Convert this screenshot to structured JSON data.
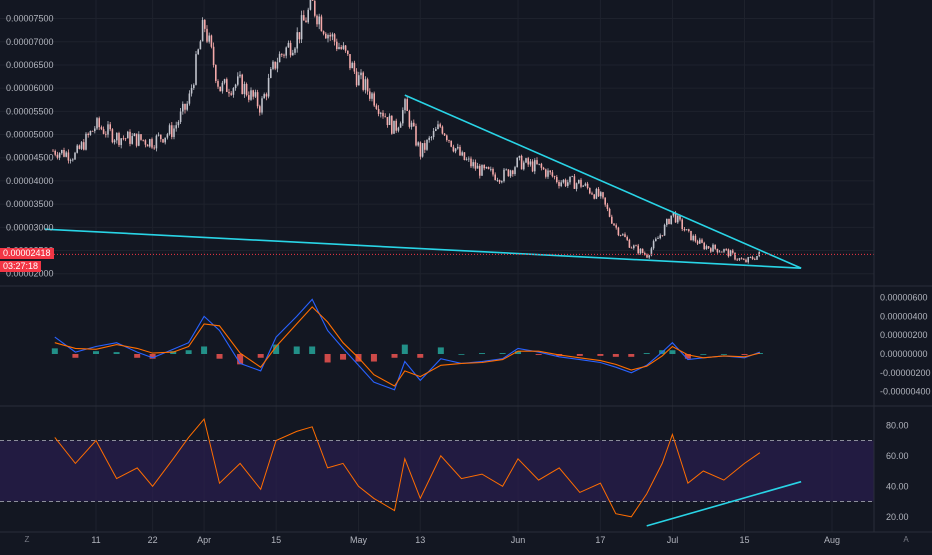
{
  "colors": {
    "background": "#131722",
    "grid": "#1e222d",
    "up_candle": "#c0c3cc",
    "down_candle": "#f4a9a9",
    "trendline": "#29d4e6",
    "price_line": "#f23645",
    "macd_line": "#2962ff",
    "signal_line": "#ff6d00",
    "hist_pos": "#26a69a",
    "hist_neg": "#ef5350",
    "rsi_line": "#ff6d00",
    "rsi_band": "#2a1e4f",
    "rsi_levels": "#b2b5be"
  },
  "price_tags": {
    "current_price": "0.00002418",
    "countdown": "03:27:18"
  },
  "time_axis": [
    "11",
    "22",
    "Apr",
    "15",
    "May",
    "13",
    "Jun",
    "17",
    "Jul",
    "15",
    "Aug"
  ],
  "corner_icons": {
    "left": "Z",
    "right": "A"
  },
  "chart_data": [
    {
      "type": "candlestick",
      "pane": "price",
      "y_ticks": [
        "0.00002000",
        "0.00002500",
        "0.00003000",
        "0.00003500",
        "0.00004000",
        "0.00004500",
        "0.00005000",
        "0.00005500",
        "0.00006000",
        "0.00006500",
        "0.00007000",
        "0.00007500"
      ],
      "ylim": [
        1.8e-05,
        7.9e-05
      ],
      "x": [
        "Mar 3",
        "Mar 7",
        "Mar 11",
        "Mar 15",
        "Mar 19",
        "Mar 22",
        "Mar 26",
        "Mar 29",
        "Apr 1",
        "Apr 4",
        "Apr 8",
        "Apr 12",
        "Apr 15",
        "Apr 19",
        "Apr 22",
        "Apr 25",
        "Apr 28",
        "May 1",
        "May 4",
        "May 8",
        "May 10",
        "May 13",
        "May 17",
        "May 21",
        "May 25",
        "May 29",
        "Jun 1",
        "Jun 5",
        "Jun 9",
        "Jun 13",
        "Jun 17",
        "Jun 20",
        "Jun 23",
        "Jun 26",
        "Jun 29",
        "Jul 1",
        "Jul 4",
        "Jul 7",
        "Jul 11",
        "Jul 15",
        "Jul 18"
      ],
      "close": [
        4.65e-05,
        4.55e-05,
        5.2e-05,
        4.95e-05,
        4.9e-05,
        4.85e-05,
        5.1e-05,
        5.7e-05,
        7.4e-05,
        6e-05,
        6.1e-05,
        5.6e-05,
        6.6e-05,
        7.1e-05,
        7.8e-05,
        7.2e-05,
        6.8e-05,
        6.2e-05,
        5.8e-05,
        5.1e-05,
        5.6e-05,
        4.6e-05,
        5.2e-05,
        4.5e-05,
        4.2e-05,
        4.1e-05,
        4.4e-05,
        4.3e-05,
        4e-05,
        3.95e-05,
        3.65e-05,
        3e-05,
        2.6e-05,
        2.4e-05,
        2.9e-05,
        3.3e-05,
        2.85e-05,
        2.6e-05,
        2.5e-05,
        2.25e-05,
        2.418e-05
      ],
      "trendlines": [
        {
          "name": "upper",
          "from": [
            "May 10",
            5.85e-05
          ],
          "to": [
            "Jul 26",
            2.12e-05
          ]
        },
        {
          "name": "lower",
          "from": [
            "Mar 1",
            2.96e-05
          ],
          "to": [
            "Jul 26",
            2.12e-05
          ]
        }
      ]
    },
    {
      "type": "line",
      "pane": "macd",
      "y_ticks": [
        "0.00000600",
        "0.00000400",
        "0.00000200",
        "0.00000000",
        "-0.00000200",
        "-0.00000400"
      ],
      "ylim": [
        -5.1e-06,
        6.8e-06
      ],
      "x": [
        "Mar 3",
        "Mar 7",
        "Mar 11",
        "Mar 15",
        "Mar 19",
        "Mar 22",
        "Mar 26",
        "Mar 29",
        "Apr 1",
        "Apr 4",
        "Apr 8",
        "Apr 12",
        "Apr 15",
        "Apr 19",
        "Apr 22",
        "Apr 25",
        "Apr 28",
        "May 1",
        "May 4",
        "May 8",
        "May 10",
        "May 13",
        "May 17",
        "May 21",
        "May 25",
        "May 29",
        "Jun 1",
        "Jun 5",
        "Jun 9",
        "Jun 13",
        "Jun 17",
        "Jun 20",
        "Jun 23",
        "Jun 26",
        "Jun 29",
        "Jul 1",
        "Jul 4",
        "Jul 7",
        "Jul 11",
        "Jul 15",
        "Jul 18"
      ],
      "series": [
        {
          "values": [
            1.8e-06,
            2e-07,
            8e-07,
            1.2e-06,
            2e-07,
            -4e-07,
            5e-07,
            1.2e-06,
            4e-06,
            2.5e-06,
            -1e-06,
            -1.8e-06,
            1.8e-06,
            4e-06,
            5.8e-06,
            2.5e-06,
            6e-07,
            -1.2e-06,
            -3e-06,
            -3.8e-06,
            -8e-07,
            -2.8e-06,
            -5e-07,
            -1e-06,
            -8e-07,
            -5e-07,
            6e-07,
            2e-07,
            -3e-07,
            -6e-07,
            -9e-07,
            -1.4e-06,
            -2e-06,
            -1.2e-06,
            2e-07,
            1.2e-06,
            -6e-07,
            -4e-07,
            -2e-07,
            -4e-07,
            2e-07
          ]
        },
        {
          "values": [
            1.2e-06,
            6e-07,
            5e-07,
            1e-06,
            6e-07,
            1e-07,
            2e-07,
            8e-07,
            3.2e-06,
            3e-06,
            1e-07,
            -1.4e-06,
            8e-07,
            3.2e-06,
            5e-06,
            3.4e-06,
            1.2e-06,
            -4e-07,
            -2.2e-06,
            -3.4e-06,
            -1.8e-06,
            -2.4e-06,
            -1.2e-06,
            -1e-06,
            -9e-07,
            -6e-07,
            3e-07,
            3e-07,
            -1e-07,
            -4e-07,
            -7e-07,
            -1.1e-06,
            -1.7e-06,
            -1.3e-06,
            -2e-07,
            8e-07,
            -1e-07,
            -4e-07,
            -2e-07,
            -3e-07,
            1e-07
          ]
        }
      ],
      "histogram": [
        6e-07,
        -4e-07,
        3e-07,
        2e-07,
        -4e-07,
        -5e-07,
        3e-07,
        4e-07,
        8e-07,
        -5e-07,
        -1.1e-06,
        -4e-07,
        1e-06,
        8e-07,
        8e-07,
        -9e-07,
        -6e-07,
        -8e-07,
        -8e-07,
        -4e-07,
        1e-06,
        -4e-07,
        7e-07,
        0.0,
        1e-07,
        1e-07,
        3e-07,
        -1e-07,
        -2e-07,
        -2e-07,
        -2e-07,
        -3e-07,
        -3e-07,
        1e-07,
        4e-07,
        4e-07,
        -5e-07,
        0.0,
        0.0,
        -1e-07,
        1e-07
      ]
    },
    {
      "type": "line",
      "pane": "rsi",
      "y_ticks": [
        "80.00",
        "60.00",
        "40.00",
        "20.00"
      ],
      "ylim": [
        10,
        90
      ],
      "levels": [
        70,
        30
      ],
      "x": [
        "Mar 3",
        "Mar 7",
        "Mar 11",
        "Mar 15",
        "Mar 19",
        "Mar 22",
        "Mar 26",
        "Mar 29",
        "Apr 1",
        "Apr 4",
        "Apr 8",
        "Apr 12",
        "Apr 15",
        "Apr 19",
        "Apr 22",
        "Apr 25",
        "Apr 28",
        "May 1",
        "May 4",
        "May 8",
        "May 10",
        "May 13",
        "May 17",
        "May 21",
        "May 25",
        "May 29",
        "Jun 1",
        "Jun 5",
        "Jun 9",
        "Jun 13",
        "Jun 17",
        "Jun 20",
        "Jun 23",
        "Jun 26",
        "Jun 29",
        "Jul 1",
        "Jul 4",
        "Jul 7",
        "Jul 11",
        "Jul 15",
        "Jul 18"
      ],
      "values": [
        72,
        55,
        70,
        45,
        52,
        40,
        58,
        72,
        84,
        42,
        55,
        38,
        70,
        76,
        79,
        52,
        55,
        40,
        32,
        24,
        58,
        32,
        60,
        45,
        48,
        40,
        58,
        44,
        52,
        36,
        42,
        22,
        20,
        35,
        55,
        74,
        42,
        50,
        44,
        55,
        62
      ],
      "trendlines": [
        {
          "name": "rsi-support",
          "from": [
            "Jun 26",
            14
          ],
          "to": [
            "Jul 26",
            43
          ]
        }
      ]
    }
  ]
}
